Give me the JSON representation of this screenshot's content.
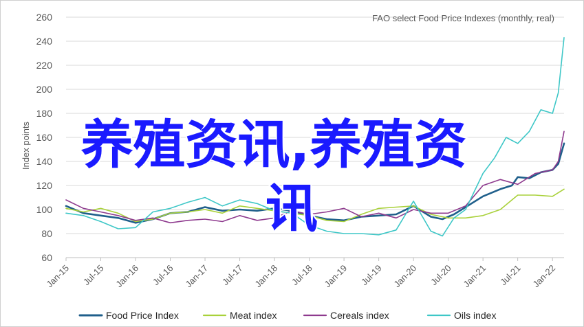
{
  "overlay": {
    "line1": "养殖资讯,养殖资",
    "line2": "讯"
  },
  "colors": {
    "food": "#1f5f8b",
    "meat": "#a9d13a",
    "cereals": "#8e3a8e",
    "oils": "#3ec7c7"
  },
  "chart_data": {
    "type": "line",
    "title": "FAO select Food Price Indexes (monthly, real)",
    "xlabel": "",
    "ylabel": "Index points",
    "ylim": [
      60,
      260
    ],
    "yticks": [
      60,
      80,
      100,
      120,
      140,
      160,
      180,
      200,
      220,
      240,
      260
    ],
    "xlim": [
      "2015-01",
      "2022-03"
    ],
    "xtick_labels": [
      "Jan-15",
      "Jul-15",
      "Jan-16",
      "Jul-16",
      "Jan-17",
      "Jul-17",
      "Jan-18",
      "Jul-18",
      "Jan-19",
      "Jul-19",
      "Jan-20",
      "Jul-20",
      "Jan-21",
      "Jul-21",
      "Jan-22"
    ],
    "grid": "horizontal",
    "legend_position": "bottom",
    "series": [
      {
        "name": "Food Price Index",
        "color_key": "food",
        "points": [
          [
            "2015-01",
            103
          ],
          [
            "2015-04",
            97
          ],
          [
            "2015-07",
            95
          ],
          [
            "2015-10",
            93
          ],
          [
            "2016-01",
            89
          ],
          [
            "2016-04",
            92
          ],
          [
            "2016-07",
            97
          ],
          [
            "2016-10",
            98
          ],
          [
            "2017-01",
            102
          ],
          [
            "2017-04",
            99
          ],
          [
            "2017-07",
            100
          ],
          [
            "2017-10",
            99
          ],
          [
            "2018-01",
            101
          ],
          [
            "2018-04",
            99
          ],
          [
            "2018-07",
            95
          ],
          [
            "2018-10",
            92
          ],
          [
            "2019-01",
            91
          ],
          [
            "2019-04",
            94
          ],
          [
            "2019-07",
            95
          ],
          [
            "2019-10",
            96
          ],
          [
            "2020-01",
            103
          ],
          [
            "2020-04",
            94
          ],
          [
            "2020-06",
            92
          ],
          [
            "2020-08",
            96
          ],
          [
            "2020-10",
            102
          ],
          [
            "2021-01",
            111
          ],
          [
            "2021-04",
            117
          ],
          [
            "2021-06",
            120
          ],
          [
            "2021-07",
            127
          ],
          [
            "2021-09",
            126
          ],
          [
            "2021-11",
            131
          ],
          [
            "2022-01",
            133
          ],
          [
            "2022-02",
            138
          ],
          [
            "2022-03",
            155
          ]
        ]
      },
      {
        "name": "Meat index",
        "color_key": "meat",
        "points": [
          [
            "2015-01",
            101
          ],
          [
            "2015-04",
            98
          ],
          [
            "2015-07",
            101
          ],
          [
            "2015-10",
            97
          ],
          [
            "2016-01",
            90
          ],
          [
            "2016-04",
            92
          ],
          [
            "2016-07",
            97
          ],
          [
            "2016-10",
            98
          ],
          [
            "2017-01",
            100
          ],
          [
            "2017-04",
            97
          ],
          [
            "2017-07",
            103
          ],
          [
            "2017-10",
            101
          ],
          [
            "2018-01",
            99
          ],
          [
            "2018-04",
            97
          ],
          [
            "2018-07",
            95
          ],
          [
            "2018-10",
            91
          ],
          [
            "2019-01",
            90
          ],
          [
            "2019-04",
            96
          ],
          [
            "2019-07",
            101
          ],
          [
            "2019-10",
            102
          ],
          [
            "2020-01",
            103
          ],
          [
            "2020-04",
            96
          ],
          [
            "2020-07",
            93
          ],
          [
            "2020-10",
            93
          ],
          [
            "2021-01",
            95
          ],
          [
            "2021-04",
            100
          ],
          [
            "2021-07",
            112
          ],
          [
            "2021-10",
            112
          ],
          [
            "2022-01",
            111
          ],
          [
            "2022-03",
            117
          ]
        ]
      },
      {
        "name": "Cereals index",
        "color_key": "cereals",
        "points": [
          [
            "2015-01",
            108
          ],
          [
            "2015-04",
            101
          ],
          [
            "2015-07",
            98
          ],
          [
            "2015-10",
            95
          ],
          [
            "2016-01",
            91
          ],
          [
            "2016-04",
            93
          ],
          [
            "2016-07",
            89
          ],
          [
            "2016-10",
            91
          ],
          [
            "2017-01",
            92
          ],
          [
            "2017-04",
            90
          ],
          [
            "2017-07",
            95
          ],
          [
            "2017-10",
            91
          ],
          [
            "2018-01",
            93
          ],
          [
            "2018-04",
            99
          ],
          [
            "2018-07",
            96
          ],
          [
            "2018-10",
            98
          ],
          [
            "2019-01",
            101
          ],
          [
            "2019-04",
            94
          ],
          [
            "2019-07",
            97
          ],
          [
            "2019-10",
            93
          ],
          [
            "2020-01",
            100
          ],
          [
            "2020-04",
            97
          ],
          [
            "2020-07",
            97
          ],
          [
            "2020-10",
            103
          ],
          [
            "2021-01",
            120
          ],
          [
            "2021-04",
            125
          ],
          [
            "2021-07",
            121
          ],
          [
            "2021-10",
            130
          ],
          [
            "2022-01",
            133
          ],
          [
            "2022-02",
            140
          ],
          [
            "2022-03",
            165
          ]
        ]
      },
      {
        "name": "Oils index",
        "color_key": "oils",
        "points": [
          [
            "2015-01",
            97
          ],
          [
            "2015-04",
            95
          ],
          [
            "2015-07",
            90
          ],
          [
            "2015-10",
            84
          ],
          [
            "2016-01",
            85
          ],
          [
            "2016-04",
            98
          ],
          [
            "2016-07",
            101
          ],
          [
            "2016-10",
            106
          ],
          [
            "2017-01",
            110
          ],
          [
            "2017-04",
            103
          ],
          [
            "2017-07",
            108
          ],
          [
            "2017-10",
            105
          ],
          [
            "2018-01",
            99
          ],
          [
            "2018-04",
            97
          ],
          [
            "2018-07",
            87
          ],
          [
            "2018-10",
            82
          ],
          [
            "2019-01",
            80
          ],
          [
            "2019-04",
            80
          ],
          [
            "2019-07",
            79
          ],
          [
            "2019-10",
            83
          ],
          [
            "2020-01",
            107
          ],
          [
            "2020-04",
            82
          ],
          [
            "2020-06",
            78
          ],
          [
            "2020-08",
            93
          ],
          [
            "2020-10",
            100
          ],
          [
            "2021-01",
            130
          ],
          [
            "2021-03",
            143
          ],
          [
            "2021-05",
            160
          ],
          [
            "2021-07",
            155
          ],
          [
            "2021-09",
            165
          ],
          [
            "2021-11",
            183
          ],
          [
            "2022-01",
            180
          ],
          [
            "2022-02",
            197
          ],
          [
            "2022-03",
            243
          ]
        ]
      }
    ]
  }
}
